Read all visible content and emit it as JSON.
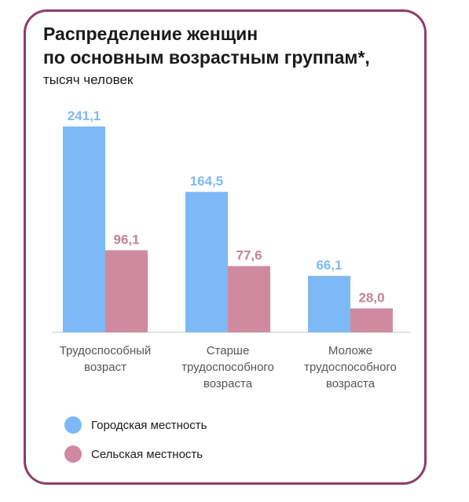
{
  "chart_data": {
    "type": "bar",
    "title": [
      "Распределение женщин",
      "по основным возрастным группам*,"
    ],
    "subtitle": "тысяч человек",
    "categories": [
      [
        "Трудоспособный",
        "возраст"
      ],
      [
        "Старше",
        "трудоспособного",
        "возраста"
      ],
      [
        "Моложе",
        "трудоспособного",
        "возраста"
      ]
    ],
    "series": [
      {
        "name": "Городская местность",
        "color": "#7db9f7",
        "label_color": "#7db9f7",
        "values": [
          241.1,
          164.5,
          66.1
        ],
        "labels": [
          "241,1",
          "164,5",
          "66,1"
        ]
      },
      {
        "name": "Сельская местность",
        "color": "#d08aa0",
        "label_color": "#c4829a",
        "values": [
          96.1,
          77.6,
          28.0
        ],
        "labels": [
          "96,1",
          "77,6",
          "28,0"
        ]
      }
    ],
    "ylim": [
      0,
      241.1
    ],
    "axis_color": "#d9d9d9",
    "grid": false,
    "legend_placement": "bottom-left"
  }
}
